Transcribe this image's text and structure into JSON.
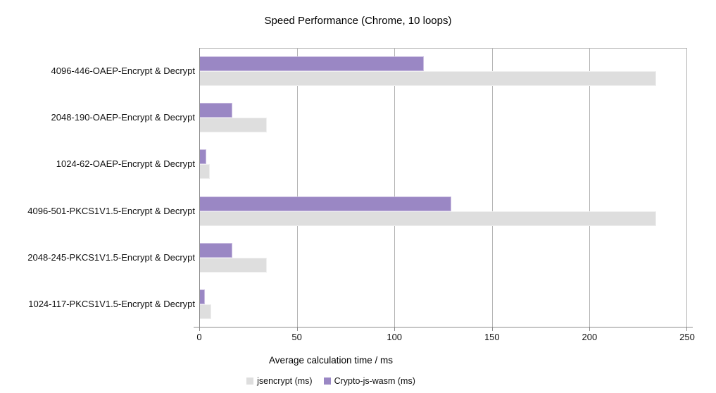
{
  "chart_data": {
    "type": "bar",
    "orientation": "horizontal",
    "title": "Speed Performance (Chrome, 10 loops)",
    "categories": [
      "4096-446-OAEP-Encrypt & Decrypt",
      "2048-190-OAEP-Encrypt & Decrypt",
      "1024-62-OAEP-Encrypt & Decrypt",
      "4096-501-PKCS1V1.5-Encrypt & Decrypt",
      "2048-245-PKCS1V1.5-Encrypt & Decrypt",
      "1024-117-PKCS1V1.5-Encrypt & Decrypt"
    ],
    "series": [
      {
        "name": "jsencrypt (ms)",
        "color": "#dedede",
        "border_color": "#efefef",
        "values": [
          234,
          34.5,
          5.5,
          234,
          34.5,
          6
        ]
      },
      {
        "name": "Crypto-js-wasm (ms)",
        "color": "#9a87c4",
        "border_color": "#c9bde0",
        "values": [
          115,
          17,
          3.5,
          129,
          17,
          3
        ]
      }
    ],
    "xlabel": "Average calculation time / ms",
    "xlim": [
      0,
      250
    ],
    "xticks": [
      "0",
      "50",
      "100",
      "150",
      "200",
      "250"
    ],
    "grid": true,
    "gridline_color": "#b3b3b3",
    "axis_color": "#8c8c8c",
    "legend_position": "bottom",
    "background_color": "#ffffff"
  }
}
